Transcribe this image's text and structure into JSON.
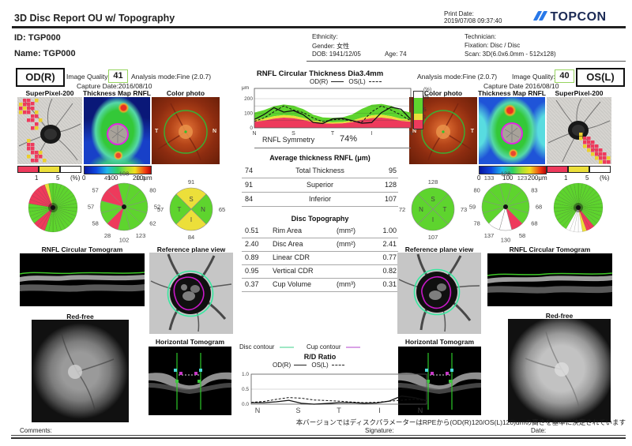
{
  "header": {
    "title": "3D Disc Report OU w/ Topography",
    "print_date_label": "Print Date:",
    "print_date": "2019/07/08 09:37:40",
    "brand": "TOPCON"
  },
  "patient": {
    "id": "ID: TGP000",
    "name": "Name: TGP000",
    "ethnicity": "Ethnicity:",
    "gender": "Gender: 女性",
    "dob": "DOB: 1941/12/05",
    "age": "Age: 74",
    "technician": "Technician:",
    "fixation": "Fixation: Disc / Disc",
    "scan": "Scan: 3D(6.0x6.0mm - 512x128)"
  },
  "od_panel": {
    "eye": "OD(R)",
    "iq_label": "Image Quality:",
    "iq_value": "41",
    "analysis": "Analysis mode:Fine (2.0.7)",
    "capture": "Capture Date:2016/08/10",
    "col_superpixel": "SuperPixel-200",
    "col_thickness": "Thickness Map RNFL",
    "col_photo": "Color photo",
    "photo_left": "T",
    "photo_right": "N",
    "scale_1": "1",
    "scale_5": "5",
    "scale_pct": "(%)",
    "bar_0": "0",
    "bar_100": "100",
    "bar_200": "200μm",
    "tomogram": "RNFL Circular Tomogram",
    "refplane": "Reference plane view",
    "redfree": "Red-free",
    "horizontal": "Horizontal Tomogram"
  },
  "os_panel": {
    "eye": "OS(L)",
    "iq_label": "Image Quality:",
    "iq_value": "40",
    "analysis": "Analysis mode:Fine (2.0.7)",
    "capture": "Capture Date 2016/08/10",
    "col_superpixel": "SuperPixel-200",
    "col_thickness": "Thickness Map RNFL",
    "col_photo": "Color photo",
    "photo_left": "N",
    "photo_right": "T",
    "scale_1": "1",
    "scale_5": "5",
    "scale_pct": "(%)",
    "bar_0": "0",
    "bar_100": "100",
    "bar_200": "200μm",
    "tomogram": "RNFL Circular Tomogram",
    "refplane": "Reference plane view",
    "redfree": "Red-free",
    "horizontal": "Horizontal Tomogram"
  },
  "center": {
    "chart_title": "RNFL Circular Thickness Dia3.4mm",
    "leg_od": "OD(R)",
    "leg_os": "OS(L)",
    "unit": "μm",
    "cbar_pct": "(%)",
    "cbar_95": "95",
    "cbar_5": "5",
    "cbar_1": "1",
    "symmetry": "RNFL Symmetry",
    "symmetry_value": "74%",
    "avg_title": "Average thickness RNFL (μm)",
    "avg_rows": [
      {
        "od": "74",
        "label": "Total Thickness",
        "os": "95"
      },
      {
        "od": "91",
        "label": "Superior",
        "os": "128"
      },
      {
        "od": "84",
        "label": "Inferior",
        "os": "107"
      }
    ],
    "disc_title": "Disc Topography",
    "disc_rows": [
      {
        "od": "0.51",
        "label": "Rim Area",
        "unit": "(mm²)",
        "os": "1.00"
      },
      {
        "od": "2.40",
        "label": "Disc Area",
        "unit": "(mm²)",
        "os": "2.41"
      },
      {
        "od": "0.89",
        "label": "Linear CDR",
        "unit": "",
        "os": "0.77"
      },
      {
        "od": "0.95",
        "label": "Vertical CDR",
        "unit": "",
        "os": "0.82"
      },
      {
        "od": "0.37",
        "label": "Cup Volume",
        "unit": "(mm³)",
        "os": "0.31"
      }
    ],
    "disc_contour": "Disc contour",
    "cup_contour": "Cup contour",
    "rd_title": "R/D Ratio"
  },
  "footer": {
    "note": "本バージョンではディスクパラメーターはRPEから(OD(R)120/OS(L)120)umの高さを基準に決定されています",
    "comments": "Comments:",
    "signature": "Signature:",
    "date": "Date:"
  },
  "colors": {
    "green": "#5ed42e",
    "yellow": "#ecdf3a",
    "red": "#ee3a5c",
    "white": "#ffffff",
    "disc_contour": "#9ee8c4",
    "cup_contour": "#d9a2e6",
    "logo_blue": "#2878e8",
    "logo_navy": "#1b2a55",
    "iq_border": "#97d45f"
  },
  "chart_data": {
    "rnfl_circular": {
      "type": "area",
      "title": "RNFL Circular Thickness Dia3.4mm",
      "x_ticks": [
        "N",
        "S",
        "T",
        "I",
        "N"
      ],
      "ylim": [
        0,
        270
      ],
      "yticks": [
        "200",
        "100",
        "0"
      ],
      "bands": {
        "green_top": [
          105,
          122,
          148,
          160,
          152,
          128,
          90,
          72,
          68,
          72,
          92,
          130,
          158,
          164,
          150,
          120,
          105
        ],
        "yellow_top": [
          55,
          64,
          80,
          88,
          83,
          68,
          50,
          40,
          38,
          40,
          50,
          70,
          86,
          90,
          80,
          62,
          55
        ],
        "red_top": [
          42,
          50,
          63,
          70,
          66,
          54,
          39,
          31,
          29,
          31,
          39,
          55,
          67,
          70,
          62,
          48,
          42
        ]
      },
      "od_um": [
        58,
        92,
        138,
        108,
        118,
        90,
        38,
        30,
        62,
        66,
        50,
        32,
        36,
        105,
        142,
        128,
        58
      ],
      "os_um": [
        45,
        68,
        110,
        150,
        122,
        105,
        68,
        42,
        55,
        60,
        46,
        40,
        110,
        150,
        122,
        88,
        48
      ],
      "symmetry_pct": 74
    },
    "od_clock": {
      "type": "pie",
      "hours": [
        12,
        1,
        2,
        3,
        4,
        5,
        6,
        7,
        8,
        9,
        10,
        11
      ],
      "values": [
        108,
        119,
        80,
        52,
        62,
        123,
        102,
        28,
        58,
        57,
        57,
        49
      ],
      "colors": [
        "g",
        "g",
        "g",
        "g",
        "g",
        "g",
        "g",
        "r",
        "g",
        "g",
        "r",
        "r"
      ]
    },
    "os_clock": {
      "type": "pie",
      "hours": [
        12,
        1,
        2,
        3,
        4,
        5,
        6,
        7,
        8,
        9,
        10,
        11
      ],
      "values": [
        128,
        123,
        83,
        68,
        68,
        58,
        130,
        137,
        78,
        59,
        80,
        133
      ],
      "colors": [
        "g",
        "g",
        "g",
        "g",
        "g",
        "r",
        "w",
        "w",
        "g",
        "g",
        "g",
        "g"
      ]
    },
    "od_quadrant": {
      "type": "pie",
      "top": {
        "label": "S",
        "value": 91,
        "color": "y"
      },
      "right": {
        "label": "N",
        "value": 65,
        "color": "g"
      },
      "bottom": {
        "label": "I",
        "value": 84,
        "color": "y"
      },
      "left": {
        "label": "T",
        "value": 57,
        "color": "g"
      }
    },
    "os_quadrant": {
      "type": "pie",
      "top": {
        "label": "S",
        "value": 128,
        "color": "g"
      },
      "right": {
        "label": "T",
        "value": 73,
        "color": "g"
      },
      "bottom": {
        "label": "I",
        "value": 107,
        "color": "g"
      },
      "left": {
        "label": "N",
        "value": 72,
        "color": "g"
      }
    },
    "od_fine_pie": {
      "type": "pie",
      "segments": 36,
      "red": [
        [
          20,
          23
        ],
        [
          28,
          34
        ]
      ],
      "yellow": [
        [
          34,
          35
        ]
      ],
      "white": []
    },
    "os_fine_pie": {
      "type": "pie",
      "segments": 36,
      "red": [
        [
          14,
          16
        ]
      ],
      "yellow": [
        [
          16,
          17
        ]
      ],
      "white": [
        [
          17,
          21
        ]
      ]
    },
    "rd_ratio": {
      "type": "line",
      "x_ticks": [
        "N",
        "S",
        "T",
        "I",
        "N"
      ],
      "ylim": [
        0,
        1.0
      ],
      "yticks": [
        "1.0",
        "0.5",
        "0.0"
      ],
      "od": [
        0.05,
        0.05,
        0.08,
        0.13,
        0.03,
        0.0,
        0.02,
        0.05,
        0.05,
        0.03,
        0.04,
        0.1,
        0.27,
        0.22,
        0.12
      ],
      "os": [
        0.06,
        0.09,
        0.16,
        0.22,
        0.2,
        0.14,
        0.12,
        0.1,
        0.07,
        0.05,
        0.06,
        0.1,
        0.13,
        0.17,
        0.11
      ]
    }
  }
}
